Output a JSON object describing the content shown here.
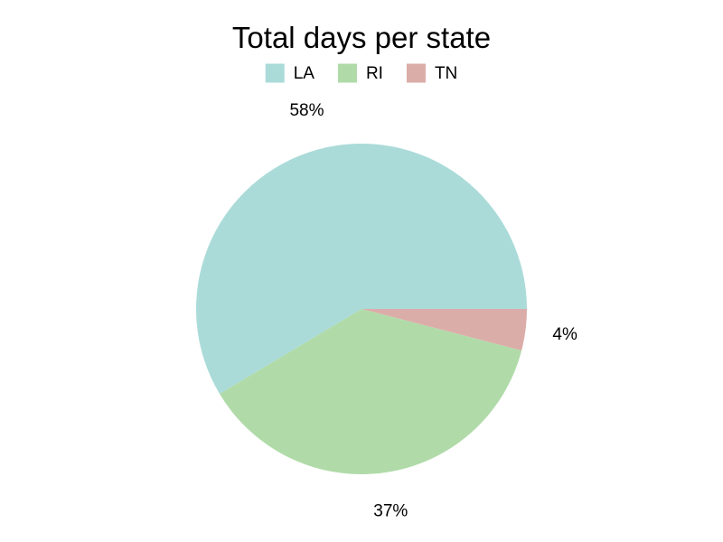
{
  "chart_data": {
    "type": "pie",
    "title": "Total days per state",
    "legend_position": "top",
    "start_angle_deg": 0,
    "direction": "counterclockwise",
    "slices": [
      {
        "label": "LA",
        "value": 58,
        "display": "58%",
        "color": "#aadbd9"
      },
      {
        "label": "RI",
        "value": 37,
        "display": "37%",
        "color": "#b0dba9"
      },
      {
        "label": "TN",
        "value": 4,
        "display": "4%",
        "color": "#dbada9"
      }
    ]
  }
}
